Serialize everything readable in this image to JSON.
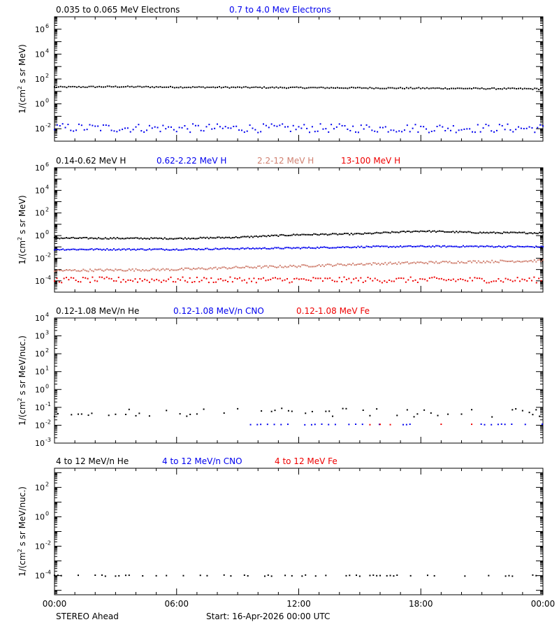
{
  "footer": {
    "spacecraft": "STEREO Ahead",
    "start": "Start: 16-Apr-2026 00:00 UTC",
    "x_tick_labels": [
      "00:00",
      "06:00",
      "12:00",
      "18:00",
      "00:00"
    ]
  },
  "chart_data": [
    {
      "type": "scatter",
      "ylabel_html": "1/(cm² s sr MeV)",
      "ylabel_main": "1/(cm",
      "ylabel_sup": "2",
      "ylabel_rest": " s sr MeV)",
      "y_scale": "log",
      "ylim": [
        0.001,
        10000000
      ],
      "y_tick_exponents": [
        -2,
        0,
        2,
        4,
        6
      ],
      "x_range_hours": [
        0,
        24
      ],
      "grid": false,
      "legend_placement": "top-left",
      "series": [
        {
          "name": "0.035 to 0.065 MeV Electrons",
          "color": "#000000",
          "points": [
            [
              0,
              22
            ],
            [
              3,
              24
            ],
            [
              6,
              22
            ],
            [
              9,
              21
            ],
            [
              12,
              20
            ],
            [
              15,
              19
            ],
            [
              18,
              18
            ],
            [
              21,
              17
            ],
            [
              24,
              16
            ]
          ],
          "scatter": 0.05,
          "sampling_min": 6
        },
        {
          "name": "0.7 to 4.0 Mev Electrons",
          "color": "#0000ee",
          "points": [
            [
              0,
              0.012
            ],
            [
              6,
              0.011
            ],
            [
              12,
              0.011
            ],
            [
              18,
              0.011
            ],
            [
              24,
              0.011
            ]
          ],
          "scatter": 0.35,
          "sampling_min": 8
        }
      ]
    },
    {
      "type": "scatter",
      "ylabel_main": "1/(cm",
      "ylabel_sup": "2",
      "ylabel_rest": " s sr MeV)",
      "y_scale": "log",
      "ylim": [
        1e-05,
        1000000
      ],
      "y_tick_exponents": [
        -4,
        -2,
        0,
        2,
        4,
        6
      ],
      "x_range_hours": [
        0,
        24
      ],
      "grid": false,
      "legend_placement": "top-left",
      "series": [
        {
          "name": "0.14-0.62 MeV H",
          "color": "#000000",
          "points": [
            [
              0,
              0.6
            ],
            [
              6,
              0.55
            ],
            [
              9,
              0.7
            ],
            [
              12,
              1.2
            ],
            [
              15,
              1.4
            ],
            [
              18,
              2.5
            ],
            [
              21,
              1.8
            ],
            [
              24,
              1.7
            ]
          ],
          "scatter": 0.06,
          "sampling_min": 5
        },
        {
          "name": "0.62-2.22 MeV H",
          "color": "#0000ee",
          "points": [
            [
              0,
              0.06
            ],
            [
              6,
              0.06
            ],
            [
              9,
              0.07
            ],
            [
              12,
              0.08
            ],
            [
              15,
              0.1
            ],
            [
              18,
              0.11
            ],
            [
              21,
              0.11
            ],
            [
              24,
              0.1
            ]
          ],
          "scatter": 0.06,
          "sampling_min": 5
        },
        {
          "name": "2.2-12 MeV H",
          "color": "#d08070",
          "points": [
            [
              0,
              0.0008
            ],
            [
              6,
              0.001
            ],
            [
              9,
              0.0015
            ],
            [
              12,
              0.002
            ],
            [
              15,
              0.003
            ],
            [
              18,
              0.004
            ],
            [
              21,
              0.005
            ],
            [
              24,
              0.006
            ]
          ],
          "scatter": 0.1,
          "sampling_min": 5
        },
        {
          "name": "13-100 MeV H",
          "color": "#ee0000",
          "points": [
            [
              0,
              0.00012
            ],
            [
              12,
              0.00012
            ],
            [
              24,
              0.00012
            ]
          ],
          "scatter": 0.25,
          "sampling_min": 7
        }
      ]
    },
    {
      "type": "scatter",
      "ylabel_main": "1/(cm",
      "ylabel_sup": "2",
      "ylabel_rest": " s sr MeV/nuc.)",
      "y_scale": "log",
      "ylim": [
        0.001,
        10000
      ],
      "y_tick_exponents": [
        -3,
        -2,
        -1,
        0,
        1,
        2,
        3,
        4
      ],
      "x_range_hours": [
        0,
        24
      ],
      "grid": false,
      "legend_placement": "top-left",
      "series": [
        {
          "name": "0.12-1.08 MeV/n He",
          "color": "#000000",
          "points": [
            [
              0,
              0.05
            ],
            [
              24,
              0.05
            ]
          ],
          "scatter": 0.25,
          "sampling_min": 10,
          "sparse": true
        },
        {
          "name": "0.12-1.08 MeV/n CNO",
          "color": "#0000ee",
          "points": [
            [
              0,
              0.011
            ],
            [
              24,
              0.011
            ]
          ],
          "scatter": 0.02,
          "sampling_min": 10,
          "sparse": true,
          "start_hour": 8.8
        },
        {
          "name": "0.12-1.08 MeV Fe",
          "color": "#ee0000",
          "points": [
            [
              0,
              0.011
            ],
            [
              24,
              0.011
            ]
          ],
          "scatter": 0.02,
          "sampling_min": 30,
          "sparse": true,
          "start_hour": 15.5
        }
      ]
    },
    {
      "type": "scatter",
      "ylabel_main": "1/(cm",
      "ylabel_sup": "2",
      "ylabel_rest": " s sr MeV/nuc.)",
      "y_scale": "log",
      "ylim": [
        5e-06,
        2000
      ],
      "y_tick_exponents": [
        -4,
        -2,
        0,
        2
      ],
      "x_range_hours": [
        0,
        24
      ],
      "grid": false,
      "legend_placement": "top-left",
      "series": [
        {
          "name": "4 to 12 MeV/n He",
          "color": "#000000",
          "points": [
            [
              0,
              0.0001
            ],
            [
              24,
              0.0001
            ]
          ],
          "scatter": 0.04,
          "sampling_min": 10,
          "sparse": true
        },
        {
          "name": "4 to 12 MeV/n CNO",
          "color": "#0000ee",
          "points": []
        },
        {
          "name": "4 to 12 MeV Fe",
          "color": "#ee0000",
          "points": []
        }
      ]
    }
  ]
}
